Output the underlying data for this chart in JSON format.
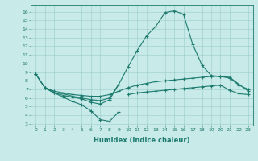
{
  "xlabel": "Humidex (Indice chaleur)",
  "bg_color": "#c8eae8",
  "line_color": "#1a7a6e",
  "grid_color": "#90c4c0",
  "x": [
    0,
    1,
    2,
    3,
    4,
    5,
    6,
    7,
    8,
    9,
    10,
    11,
    12,
    13,
    14,
    15,
    16,
    17,
    18,
    19,
    20,
    21,
    22,
    23
  ],
  "curve_main": [
    8.8,
    7.2,
    6.6,
    6.5,
    6.2,
    6.0,
    5.8,
    5.7,
    6.0,
    7.6,
    9.6,
    11.5,
    13.2,
    14.3,
    15.9,
    16.1,
    15.7,
    12.2,
    9.8,
    8.6,
    8.5,
    8.3,
    7.5,
    7.0
  ],
  "curve_upper": [
    8.8,
    7.2,
    6.8,
    6.6,
    6.4,
    6.3,
    6.2,
    6.2,
    6.4,
    6.8,
    7.2,
    7.5,
    7.7,
    7.9,
    8.0,
    8.1,
    8.2,
    8.3,
    8.4,
    8.5,
    8.5,
    8.4,
    7.6,
    6.8
  ],
  "curve_mid": [
    null,
    null,
    null,
    null,
    null,
    null,
    null,
    null,
    null,
    null,
    6.4,
    6.6,
    6.7,
    6.8,
    6.9,
    7.0,
    7.1,
    7.2,
    7.3,
    7.4,
    7.5,
    6.9,
    6.5,
    6.4
  ],
  "curve_low1": [
    8.8,
    7.2,
    6.6,
    6.3,
    6.1,
    5.9,
    5.5,
    5.3,
    5.8,
    7.6,
    null,
    null,
    null,
    null,
    null,
    null,
    null,
    null,
    null,
    null,
    null,
    null,
    null,
    null
  ],
  "curve_low2": [
    8.8,
    7.2,
    6.4,
    6.0,
    5.6,
    5.2,
    4.7,
    4.3,
    4.3,
    4.9,
    null,
    null,
    null,
    null,
    null,
    null,
    null,
    null,
    null,
    null,
    null,
    null,
    null,
    null
  ],
  "curve_dip": [
    null,
    7.2,
    6.6,
    6.1,
    5.6,
    5.2,
    4.5,
    3.5,
    3.3,
    4.4,
    null,
    null,
    null,
    null,
    null,
    null,
    null,
    null,
    null,
    null,
    null,
    null,
    null,
    null
  ],
  "xlim": [
    -0.5,
    23.5
  ],
  "ylim": [
    2.8,
    16.8
  ],
  "yticks": [
    3,
    4,
    5,
    6,
    7,
    8,
    9,
    10,
    11,
    12,
    13,
    14,
    15,
    16
  ],
  "xticks": [
    0,
    1,
    2,
    3,
    4,
    5,
    6,
    7,
    8,
    9,
    10,
    11,
    12,
    13,
    14,
    15,
    16,
    17,
    18,
    19,
    20,
    21,
    22,
    23
  ]
}
